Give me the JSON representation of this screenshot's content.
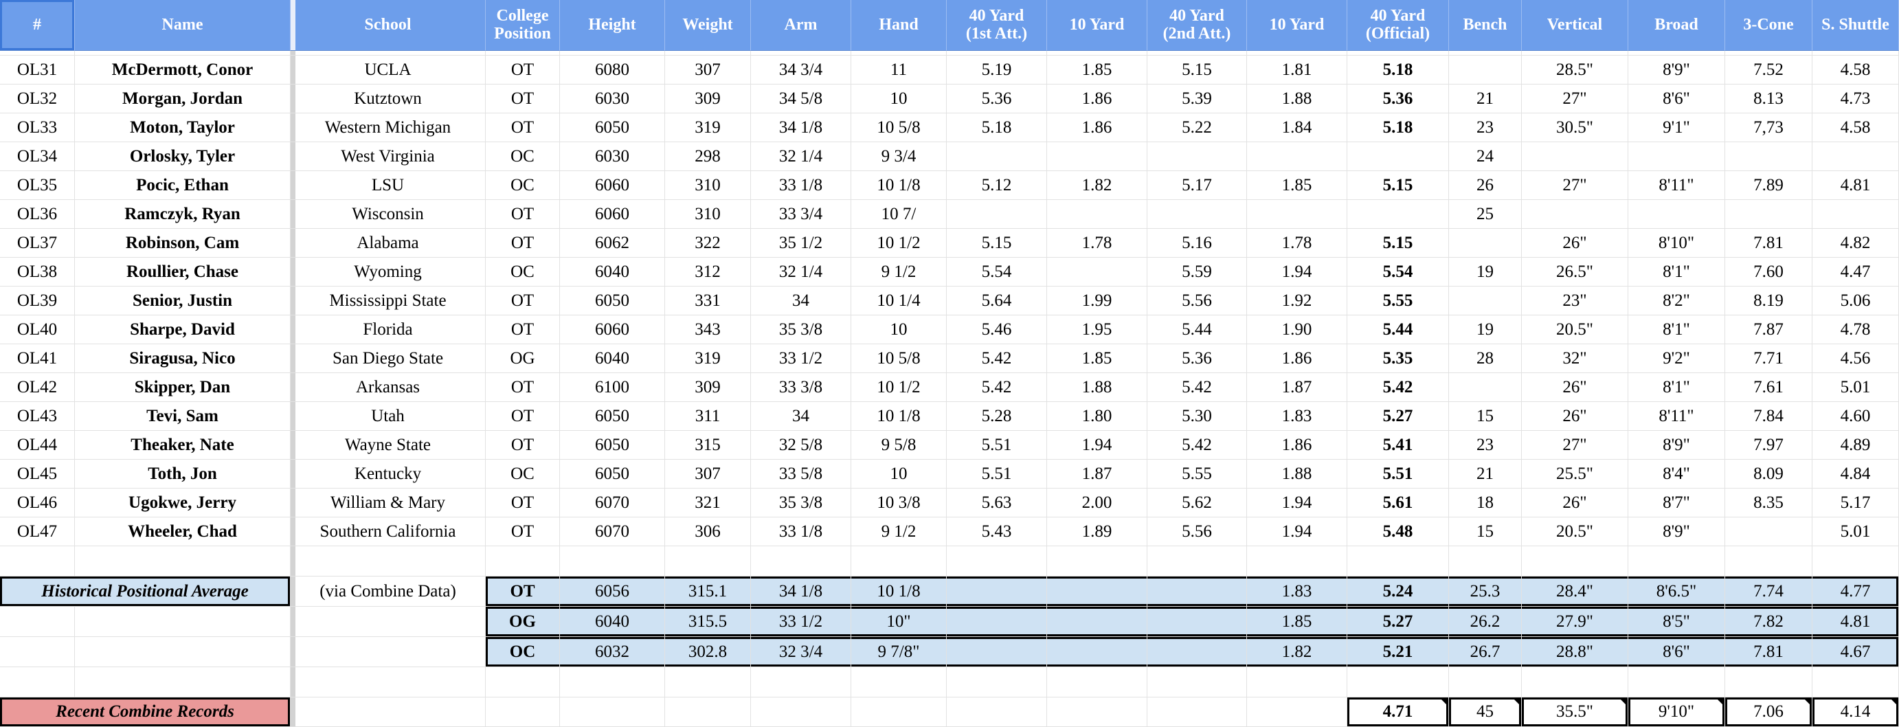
{
  "columns": [
    "#",
    "Name",
    "School",
    "College\nPosition",
    "Height",
    "Weight",
    "Arm",
    "Hand",
    "40 Yard\n(1st Att.)",
    "10 Yard",
    "40 Yard\n(2nd Att.)",
    "10 Yard",
    "40 Yard\n(Official)",
    "Bench",
    "Vertical",
    "Broad",
    "3-Cone",
    "S. Shuttle"
  ],
  "players": [
    [
      "OL31",
      "McDermott, Conor",
      "UCLA",
      "OT",
      "6080",
      "307",
      "34 3/4",
      "11",
      "5.19",
      "1.85",
      "5.15",
      "1.81",
      "5.18",
      null,
      "28.5\"",
      "8'9\"",
      "7.52",
      "4.58"
    ],
    [
      "OL32",
      "Morgan, Jordan",
      "Kutztown",
      "OT",
      "6030",
      "309",
      "34 5/8",
      "10",
      "5.36",
      "1.86",
      "5.39",
      "1.88",
      "5.36",
      "21",
      "27\"",
      "8'6\"",
      "8.13",
      "4.73"
    ],
    [
      "OL33",
      "Moton, Taylor",
      "Western Michigan",
      "OT",
      "6050",
      "319",
      "34 1/8",
      "10 5/8",
      "5.18",
      "1.86",
      "5.22",
      "1.84",
      "5.18",
      "23",
      "30.5\"",
      "9'1\"",
      "7,73",
      "4.58"
    ],
    [
      "OL34",
      "Orlosky, Tyler",
      "West Virginia",
      "OC",
      "6030",
      "298",
      "32 1/4",
      "9 3/4",
      null,
      null,
      null,
      null,
      null,
      "24",
      null,
      null,
      null,
      null
    ],
    [
      "OL35",
      "Pocic, Ethan",
      "LSU",
      "OC",
      "6060",
      "310",
      "33 1/8",
      "10 1/8",
      "5.12",
      "1.82",
      "5.17",
      "1.85",
      "5.15",
      "26",
      "27\"",
      "8'11\"",
      "7.89",
      "4.81"
    ],
    [
      "OL36",
      "Ramczyk, Ryan",
      "Wisconsin",
      "OT",
      "6060",
      "310",
      "33 3/4",
      "10 7/",
      null,
      null,
      null,
      null,
      null,
      "25",
      null,
      null,
      null,
      null
    ],
    [
      "OL37",
      "Robinson, Cam",
      "Alabama",
      "OT",
      "6062",
      "322",
      "35 1/2",
      "10 1/2",
      "5.15",
      "1.78",
      "5.16",
      "1.78",
      "5.15",
      null,
      "26\"",
      "8'10\"",
      "7.81",
      "4.82"
    ],
    [
      "OL38",
      "Roullier, Chase",
      "Wyoming",
      "OC",
      "6040",
      "312",
      "32 1/4",
      "9 1/2",
      "5.54",
      null,
      "5.59",
      "1.94",
      "5.54",
      "19",
      "26.5\"",
      "8'1\"",
      "7.60",
      "4.47"
    ],
    [
      "OL39",
      "Senior, Justin",
      "Mississippi State",
      "OT",
      "6050",
      "331",
      "34",
      "10 1/4",
      "5.64",
      "1.99",
      "5.56",
      "1.92",
      "5.55",
      null,
      "23\"",
      "8'2\"",
      "8.19",
      "5.06"
    ],
    [
      "OL40",
      "Sharpe, David",
      "Florida",
      "OT",
      "6060",
      "343",
      "35 3/8",
      "10",
      "5.46",
      "1.95",
      "5.44",
      "1.90",
      "5.44",
      "19",
      "20.5\"",
      "8'1\"",
      "7.87",
      "4.78"
    ],
    [
      "OL41",
      "Siragusa, Nico",
      "San Diego State",
      "OG",
      "6040",
      "319",
      "33 1/2",
      "10 5/8",
      "5.42",
      "1.85",
      "5.36",
      "1.86",
      "5.35",
      "28",
      "32\"",
      "9'2\"",
      "7.71",
      "4.56"
    ],
    [
      "OL42",
      "Skipper, Dan",
      "Arkansas",
      "OT",
      "6100",
      "309",
      "33 3/8",
      "10 1/2",
      "5.42",
      "1.88",
      "5.42",
      "1.87",
      "5.42",
      null,
      "26\"",
      "8'1\"",
      "7.61",
      "5.01"
    ],
    [
      "OL43",
      "Tevi, Sam",
      "Utah",
      "OT",
      "6050",
      "311",
      "34",
      "10 1/8",
      "5.28",
      "1.80",
      "5.30",
      "1.83",
      "5.27",
      "15",
      "26\"",
      "8'11\"",
      "7.84",
      "4.60"
    ],
    [
      "OL44",
      "Theaker, Nate",
      "Wayne State",
      "OT",
      "6050",
      "315",
      "32 5/8",
      "9 5/8",
      "5.51",
      "1.94",
      "5.42",
      "1.86",
      "5.41",
      "23",
      "27\"",
      "8'9\"",
      "7.97",
      "4.89"
    ],
    [
      "OL45",
      "Toth, Jon",
      "Kentucky",
      "OC",
      "6050",
      "307",
      "33 5/8",
      "10",
      "5.51",
      "1.87",
      "5.55",
      "1.88",
      "5.51",
      "21",
      "25.5\"",
      "8'4\"",
      "8.09",
      "4.84"
    ],
    [
      "OL46",
      "Ugokwe, Jerry",
      "William & Mary",
      "OT",
      "6070",
      "321",
      "35 3/8",
      "10 3/8",
      "5.63",
      "2.00",
      "5.62",
      "1.94",
      "5.61",
      "18",
      "26\"",
      "8'7\"",
      "8.35",
      "5.17"
    ],
    [
      "OL47",
      "Wheeler, Chad",
      "Southern California",
      "OT",
      "6070",
      "306",
      "33 1/8",
      "9 1/2",
      "5.43",
      "1.89",
      "5.56",
      "1.94",
      "5.48",
      "15",
      "20.5\"",
      "8'9\"",
      null,
      "5.01"
    ]
  ],
  "averages": {
    "label": "Historical Positional Average",
    "note": "(via Combine Data)",
    "rows": [
      [
        "OT",
        "6056",
        "315.1",
        "34 1/8",
        "10 1/8",
        null,
        null,
        null,
        "1.83",
        "5.24",
        "25.3",
        "28.4\"",
        "8'6.5\"",
        "7.74",
        "4.77"
      ],
      [
        "OG",
        "6040",
        "315.5",
        "33 1/2",
        "10\"",
        null,
        null,
        null,
        "1.85",
        "5.27",
        "26.2",
        "27.9\"",
        "8'5\"",
        "7.82",
        "4.81"
      ],
      [
        "OC",
        "6032",
        "302.8",
        "32 3/4",
        "9 7/8\"",
        null,
        null,
        null,
        "1.82",
        "5.21",
        "26.7",
        "28.8\"",
        "8'6\"",
        "7.81",
        "4.67"
      ]
    ]
  },
  "records": {
    "label": "Recent Combine Records",
    "values": [
      "4.71",
      "45",
      "35.5\"",
      "9'10\"",
      "7.06",
      "4.14"
    ]
  }
}
